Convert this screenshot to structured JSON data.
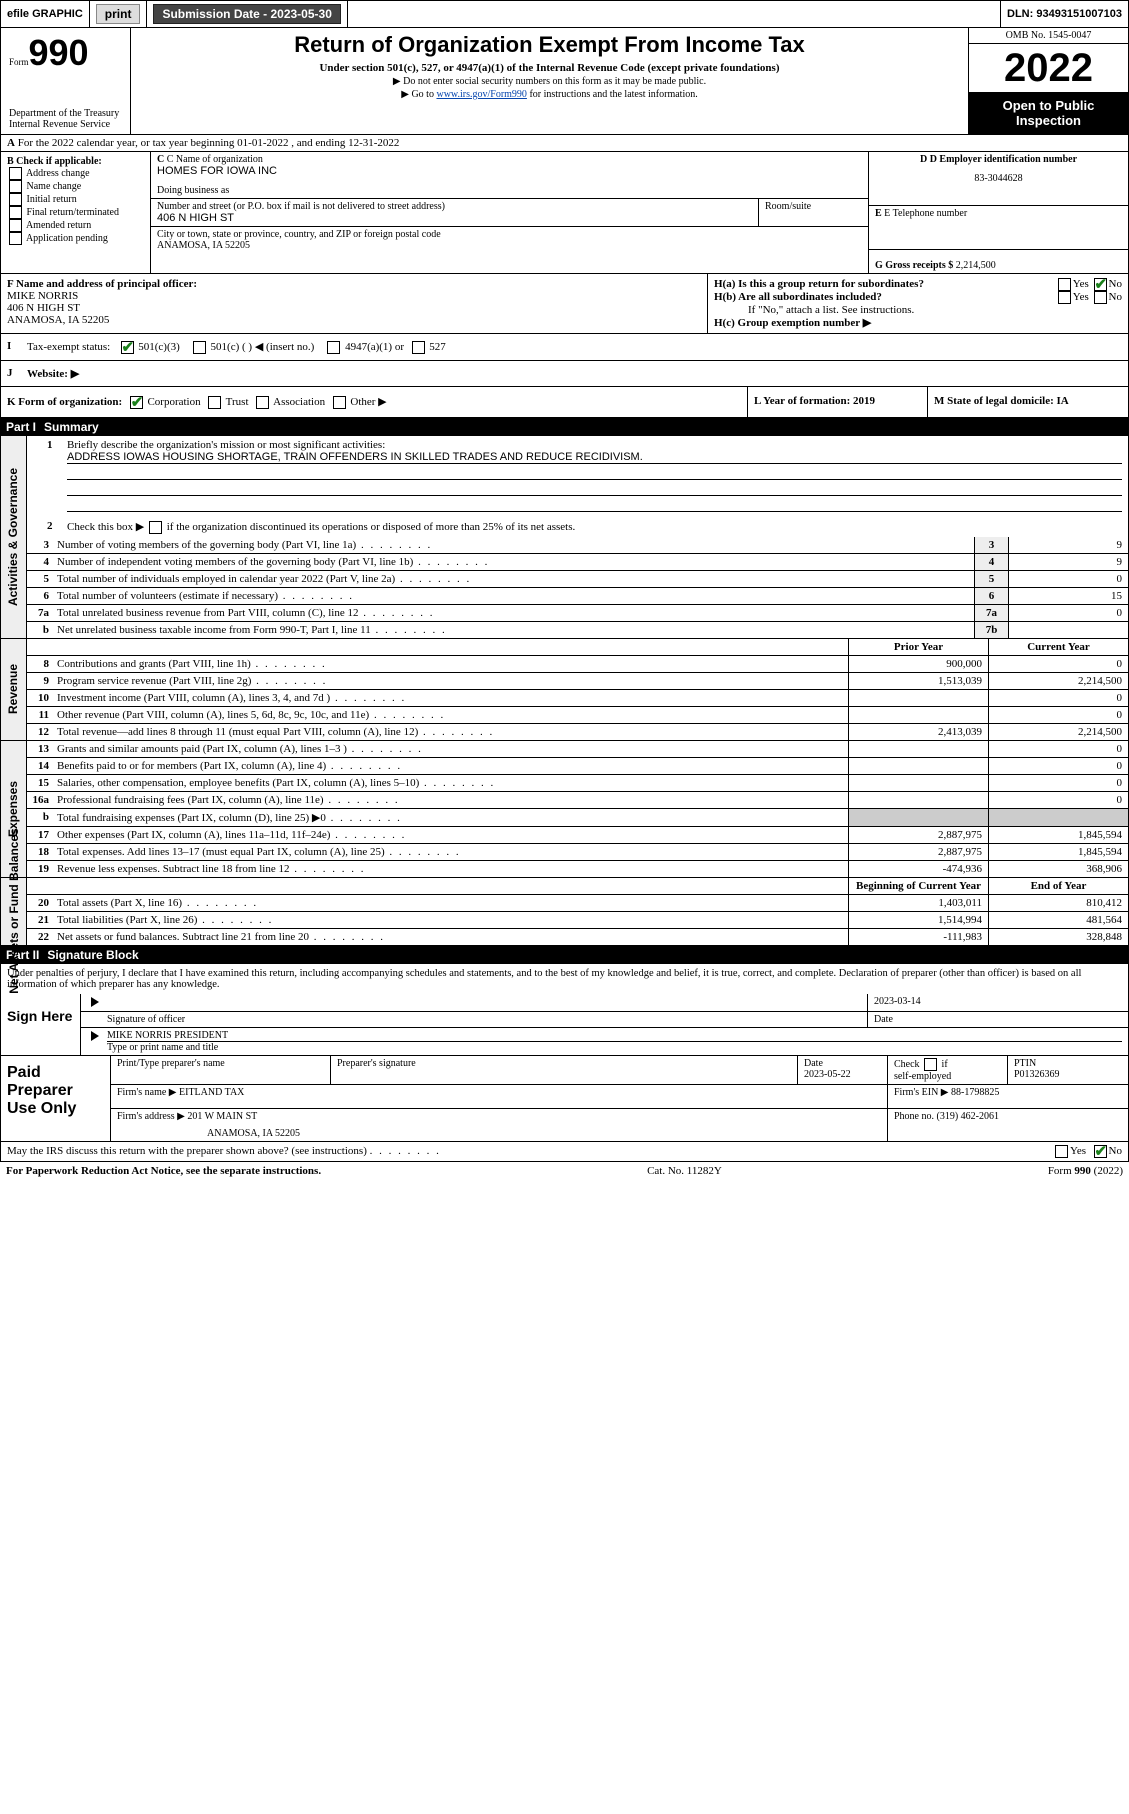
{
  "topbar": {
    "efile": "efile GRAPHIC",
    "print": "print",
    "submission_label": "Submission Date - 2023-05-30",
    "dln_label": "DLN: 93493151007103"
  },
  "header": {
    "form_prefix": "Form",
    "form_num": "990",
    "title": "Return of Organization Exempt From Income Tax",
    "subtitle": "Under section 501(c), 527, or 4947(a)(1) of the Internal Revenue Code (except private foundations)",
    "line_ssn": "▶ Do not enter social security numbers on this form as it may be made public.",
    "line_goto_pre": "▶ Go to ",
    "line_goto_link": "www.irs.gov/Form990",
    "line_goto_post": " for instructions and the latest information.",
    "dept": "Department of the Treasury",
    "irs": "Internal Revenue Service",
    "omb": "OMB No. 1545-0047",
    "year": "2022",
    "open": "Open to Public Inspection"
  },
  "row_a": {
    "text": "For the 2022 calendar year, or tax year beginning 01-01-2022    , and ending 12-31-2022",
    "letter": "A"
  },
  "section_b": {
    "label": "B Check if applicable:",
    "opts": [
      "Address change",
      "Name change",
      "Initial return",
      "Final return/terminated",
      "Amended return",
      "Application pending"
    ],
    "c_label": "C Name of organization",
    "c_val": "HOMES FOR IOWA INC",
    "dba": "Doing business as",
    "addr_label": "Number and street (or P.O. box if mail is not delivered to street address)",
    "room": "Room/suite",
    "addr_val": "406 N HIGH ST",
    "city_label": "City or town, state or province, country, and ZIP or foreign postal code",
    "city_val": "ANAMOSA, IA  52205",
    "d_label": "D Employer identification number",
    "d_val": "83-3044628",
    "e_label": "E Telephone number",
    "g_label": "G Gross receipts $",
    "g_val": "2,214,500"
  },
  "section_fh": {
    "f_label": "F  Name and address of principal officer:",
    "f_name": "MIKE NORRIS",
    "f_addr1": "406 N HIGH ST",
    "f_addr2": "ANAMOSA, IA  52205",
    "ha": "H(a)  Is this a group return for subordinates?",
    "hb": "H(b)  Are all subordinates included?",
    "hb_note": "If \"No,\" attach a list. See instructions.",
    "hc": "H(c)  Group exemption number ▶",
    "yes": "Yes",
    "no": "No"
  },
  "row_i": {
    "label": "I",
    "text": "Tax-exempt status:",
    "opt1": "501(c)(3)",
    "opt2": "501(c) (   ) ◀ (insert no.)",
    "opt3": "4947(a)(1) or",
    "opt4": "527"
  },
  "row_j": {
    "label": "J",
    "text": "Website: ▶"
  },
  "row_k": {
    "label": "K Form of organization:",
    "corp": "Corporation",
    "trust": "Trust",
    "assoc": "Association",
    "other": "Other ▶"
  },
  "row_l": {
    "label": "L Year of formation: 2019"
  },
  "row_m": {
    "label": "M State of legal domicile: IA"
  },
  "part1": {
    "num": "Part I",
    "title": "Summary",
    "q1_label": "1",
    "q1_text": "Briefly describe the organization's mission or most significant activities:",
    "q1_val": "ADDRESS IOWAS HOUSING SHORTAGE, TRAIN OFFENDERS IN SKILLED TRADES AND REDUCE RECIDIVISM.",
    "q2_label": "2",
    "q2_text": "Check this box ▶      if the organization discontinued its operations or disposed of more than 25% of its net assets.",
    "rows_gov": [
      {
        "n": "3",
        "d": "Number of voting members of the governing body (Part VI, line 1a)",
        "box": "3",
        "v": "9"
      },
      {
        "n": "4",
        "d": "Number of independent voting members of the governing body (Part VI, line 1b)",
        "box": "4",
        "v": "9"
      },
      {
        "n": "5",
        "d": "Total number of individuals employed in calendar year 2022 (Part V, line 2a)",
        "box": "5",
        "v": "0"
      },
      {
        "n": "6",
        "d": "Total number of volunteers (estimate if necessary)",
        "box": "6",
        "v": "15"
      },
      {
        "n": "7a",
        "d": "Total unrelated business revenue from Part VIII, column (C), line 12",
        "box": "7a",
        "v": "0"
      },
      {
        "n": "b",
        "d": "Net unrelated business taxable income from Form 990-T, Part I, line 11",
        "box": "7b",
        "v": ""
      }
    ],
    "hdr_prior": "Prior Year",
    "hdr_curr": "Current Year",
    "rows_rev": [
      {
        "n": "8",
        "d": "Contributions and grants (Part VIII, line 1h)",
        "p": "900,000",
        "c": "0"
      },
      {
        "n": "9",
        "d": "Program service revenue (Part VIII, line 2g)",
        "p": "1,513,039",
        "c": "2,214,500"
      },
      {
        "n": "10",
        "d": "Investment income (Part VIII, column (A), lines 3, 4, and 7d )",
        "p": "",
        "c": "0"
      },
      {
        "n": "11",
        "d": "Other revenue (Part VIII, column (A), lines 5, 6d, 8c, 9c, 10c, and 11e)",
        "p": "",
        "c": "0"
      },
      {
        "n": "12",
        "d": "Total revenue—add lines 8 through 11 (must equal Part VIII, column (A), line 12)",
        "p": "2,413,039",
        "c": "2,214,500"
      }
    ],
    "rows_exp": [
      {
        "n": "13",
        "d": "Grants and similar amounts paid (Part IX, column (A), lines 1–3 )",
        "p": "",
        "c": "0"
      },
      {
        "n": "14",
        "d": "Benefits paid to or for members (Part IX, column (A), line 4)",
        "p": "",
        "c": "0"
      },
      {
        "n": "15",
        "d": "Salaries, other compensation, employee benefits (Part IX, column (A), lines 5–10)",
        "p": "",
        "c": "0"
      },
      {
        "n": "16a",
        "d": "Professional fundraising fees (Part IX, column (A), line 11e)",
        "p": "",
        "c": "0"
      },
      {
        "n": "b",
        "d": "Total fundraising expenses (Part IX, column (D), line 25) ▶0",
        "p": "GRAY",
        "c": "GRAY"
      },
      {
        "n": "17",
        "d": "Other expenses (Part IX, column (A), lines 11a–11d, 11f–24e)",
        "p": "2,887,975",
        "c": "1,845,594"
      },
      {
        "n": "18",
        "d": "Total expenses. Add lines 13–17 (must equal Part IX, column (A), line 25)",
        "p": "2,887,975",
        "c": "1,845,594"
      },
      {
        "n": "19",
        "d": "Revenue less expenses. Subtract line 18 from line 12",
        "p": "-474,936",
        "c": "368,906"
      }
    ],
    "hdr_beg": "Beginning of Current Year",
    "hdr_end": "End of Year",
    "rows_net": [
      {
        "n": "20",
        "d": "Total assets (Part X, line 16)",
        "p": "1,403,011",
        "c": "810,412"
      },
      {
        "n": "21",
        "d": "Total liabilities (Part X, line 26)",
        "p": "1,514,994",
        "c": "481,564"
      },
      {
        "n": "22",
        "d": "Net assets or fund balances. Subtract line 21 from line 20",
        "p": "-111,983",
        "c": "328,848"
      }
    ],
    "side_gov": "Activities & Governance",
    "side_rev": "Revenue",
    "side_exp": "Expenses",
    "side_net": "Net Assets or Fund Balances"
  },
  "part2": {
    "num": "Part II",
    "title": "Signature Block",
    "perjury": "Under penalties of perjury, I declare that I have examined this return, including accompanying schedules and statements, and to the best of my knowledge and belief, it is true, correct, and complete. Declaration of preparer (other than officer) is based on all information of which preparer has any knowledge.",
    "sign_here": "Sign Here",
    "sig_officer": "Signature of officer",
    "sig_date": "Date",
    "sig_date_val": "2023-03-14",
    "sig_name": "MIKE NORRIS  PRESIDENT",
    "sig_name_lbl": "Type or print name and title",
    "paid": "Paid Preparer Use Only",
    "prep_name_lbl": "Print/Type preparer's name",
    "prep_sig_lbl": "Preparer's signature",
    "prep_date_lbl": "Date",
    "prep_date_val": "2023-05-22",
    "prep_check": "Check      if self-employed",
    "ptin_lbl": "PTIN",
    "ptin_val": "P01326369",
    "firm_name_lbl": "Firm's name   ▶",
    "firm_name_val": "EITLAND TAX",
    "firm_ein_lbl": "Firm's EIN ▶",
    "firm_ein_val": "88-1798825",
    "firm_addr_lbl": "Firm's address ▶",
    "firm_addr_val": "201 W MAIN ST",
    "firm_addr_val2": "ANAMOSA, IA  52205",
    "phone_lbl": "Phone no.",
    "phone_val": "(319) 462-2061",
    "discuss": "May the IRS discuss this return with the preparer shown above? (see instructions)",
    "yes": "Yes",
    "no": "No"
  },
  "footer": {
    "pwra": "For Paperwork Reduction Act Notice, see the separate instructions.",
    "cat": "Cat. No. 11282Y",
    "form": "Form 990 (2022)"
  },
  "colors": {
    "link": "#0645ad",
    "check": "#1a7f1a",
    "gray_bg": "#eee",
    "gray_cell": "#ccc"
  }
}
